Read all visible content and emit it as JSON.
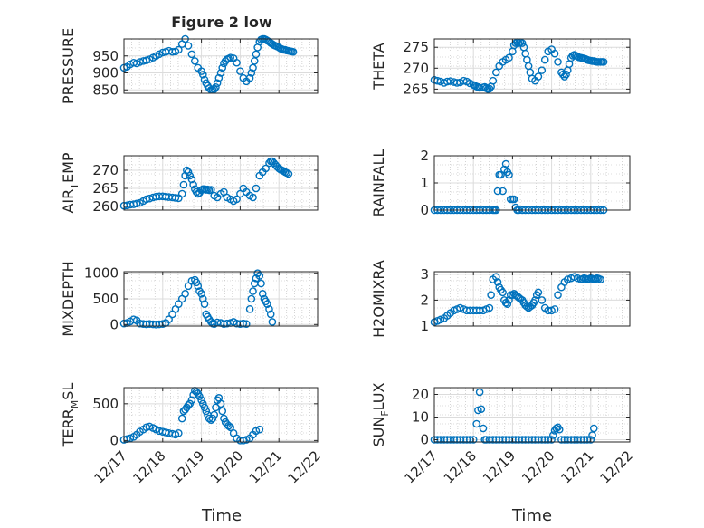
{
  "figure": {
    "title": "Figure 2 low",
    "x_label": "Time"
  },
  "colors": {
    "marker": "#0072BD",
    "axis": "#262626",
    "grid": "#b9b9b9"
  },
  "chart_data": [
    {
      "type": "scatter",
      "id": "pressure",
      "ylabel": "PRESSURE",
      "ylim": [
        840,
        1000
      ],
      "yticks": [
        850,
        900,
        950
      ],
      "xlim": [
        "12/17",
        "12/22"
      ],
      "grid": true,
      "x": [
        0.0,
        0.08,
        0.16,
        0.25,
        0.33,
        0.41,
        0.5,
        0.58,
        0.66,
        0.75,
        0.83,
        0.91,
        1.0,
        1.08,
        1.16,
        1.25,
        1.33,
        1.41,
        1.5,
        1.58,
        1.66,
        1.75,
        1.83,
        1.91,
        2.0,
        2.04,
        2.08,
        2.12,
        2.16,
        2.2,
        2.25,
        2.29,
        2.33,
        2.37,
        2.41,
        2.45,
        2.5,
        2.54,
        2.58,
        2.62,
        2.66,
        2.7,
        2.75,
        2.83,
        2.91,
        3.0,
        3.08,
        3.16,
        3.25,
        3.29,
        3.33,
        3.37,
        3.41,
        3.45,
        3.5,
        3.54,
        3.58,
        3.62,
        3.66,
        3.7,
        3.75,
        3.79,
        3.83,
        3.87,
        3.91,
        3.95,
        4.0,
        4.04,
        4.08,
        4.12,
        4.16,
        4.2,
        4.25,
        4.29,
        4.33,
        4.37
      ],
      "y": [
        915,
        918,
        925,
        930,
        928,
        932,
        935,
        937,
        940,
        945,
        950,
        955,
        960,
        962,
        965,
        962,
        963,
        968,
        985,
        1000,
        980,
        955,
        935,
        915,
        905,
        895,
        880,
        870,
        862,
        855,
        850,
        850,
        852,
        858,
        870,
        885,
        900,
        915,
        928,
        935,
        940,
        942,
        945,
        943,
        930,
        905,
        885,
        875,
        885,
        900,
        915,
        935,
        955,
        975,
        992,
        998,
        1000,
        1000,
        998,
        995,
        992,
        988,
        985,
        982,
        980,
        978,
        975,
        972,
        970,
        968,
        968,
        966,
        965,
        964,
        963,
        962
      ]
    },
    {
      "type": "scatter",
      "id": "theta",
      "ylabel": "THETA",
      "ylim": [
        264,
        277
      ],
      "yticks": [
        265,
        270,
        275
      ],
      "xlim": [
        "12/17",
        "12/22"
      ],
      "grid": true,
      "x": [
        0.0,
        0.08,
        0.16,
        0.25,
        0.33,
        0.41,
        0.5,
        0.58,
        0.66,
        0.75,
        0.83,
        0.91,
        1.0,
        1.04,
        1.08,
        1.12,
        1.16,
        1.25,
        1.29,
        1.33,
        1.37,
        1.41,
        1.45,
        1.5,
        1.58,
        1.66,
        1.75,
        1.83,
        1.91,
        2.0,
        2.04,
        2.08,
        2.12,
        2.16,
        2.2,
        2.25,
        2.29,
        2.33,
        2.37,
        2.41,
        2.45,
        2.5,
        2.58,
        2.66,
        2.75,
        2.83,
        2.91,
        3.0,
        3.08,
        3.16,
        3.25,
        3.29,
        3.33,
        3.37,
        3.41,
        3.45,
        3.5,
        3.54,
        3.58,
        3.62,
        3.66,
        3.7,
        3.75,
        3.79,
        3.83,
        3.87,
        3.91,
        3.95,
        4.0,
        4.04,
        4.08,
        4.12,
        4.16,
        4.2,
        4.25,
        4.29,
        4.33
      ],
      "y": [
        267.2,
        267.0,
        266.8,
        266.5,
        266.8,
        266.9,
        266.7,
        266.5,
        266.6,
        267.0,
        266.8,
        266.4,
        266.0,
        265.8,
        265.6,
        265.5,
        265.3,
        265.4,
        265.5,
        265.2,
        265.0,
        265.1,
        265.6,
        267.0,
        269.0,
        270.5,
        271.5,
        272.0,
        272.5,
        274.0,
        275.5,
        276.0,
        276.2,
        276.0,
        276.2,
        276.0,
        275.0,
        273.5,
        272.0,
        270.5,
        269.0,
        267.5,
        267.0,
        268.0,
        269.5,
        272.0,
        274.0,
        274.5,
        273.5,
        271.5,
        269.0,
        268.5,
        268.0,
        268.5,
        269.5,
        271.0,
        272.5,
        273.0,
        273.2,
        273.0,
        272.8,
        272.6,
        272.5,
        272.4,
        272.3,
        272.2,
        272.0,
        271.9,
        271.8,
        271.7,
        271.7,
        271.6,
        271.5,
        271.5,
        271.5,
        271.5,
        271.5
      ]
    },
    {
      "type": "scatter",
      "id": "air_temp",
      "ylabel": "AIR_TEMP",
      "ylabel_display": [
        "AIR",
        "T",
        "EMP"
      ],
      "ylim": [
        259,
        274
      ],
      "yticks": [
        260,
        265,
        270
      ],
      "xlim": [
        "12/17",
        "12/22"
      ],
      "grid": true,
      "x": [
        0.0,
        0.08,
        0.16,
        0.25,
        0.33,
        0.41,
        0.5,
        0.58,
        0.66,
        0.75,
        0.83,
        0.91,
        1.0,
        1.08,
        1.16,
        1.25,
        1.33,
        1.41,
        1.5,
        1.54,
        1.58,
        1.62,
        1.66,
        1.7,
        1.75,
        1.79,
        1.83,
        1.87,
        1.91,
        1.95,
        2.0,
        2.04,
        2.08,
        2.12,
        2.16,
        2.2,
        2.25,
        2.33,
        2.41,
        2.5,
        2.58,
        2.66,
        2.75,
        2.83,
        2.91,
        3.0,
        3.08,
        3.16,
        3.25,
        3.33,
        3.41,
        3.5,
        3.58,
        3.66,
        3.75,
        3.79,
        3.83,
        3.87,
        3.91,
        3.95,
        4.0,
        4.04,
        4.08,
        4.12,
        4.16,
        4.2,
        4.25
      ],
      "y": [
        260.2,
        260.3,
        260.5,
        260.6,
        260.8,
        261.0,
        261.5,
        262.0,
        262.2,
        262.5,
        262.7,
        262.8,
        262.8,
        262.7,
        262.6,
        262.5,
        262.4,
        262.3,
        263.5,
        266.0,
        268.5,
        270.0,
        269.5,
        268.5,
        267.5,
        266.0,
        264.8,
        264.0,
        263.5,
        263.8,
        264.5,
        264.8,
        264.8,
        264.6,
        264.7,
        264.5,
        264.6,
        263.0,
        262.5,
        263.5,
        264.0,
        262.5,
        262.0,
        261.5,
        262.0,
        263.5,
        265.0,
        264.0,
        263.0,
        262.5,
        265.0,
        268.5,
        269.5,
        270.5,
        272.0,
        272.5,
        272.5,
        272.0,
        271.5,
        271.0,
        270.5,
        270.2,
        270.0,
        269.8,
        269.5,
        269.3,
        269.0
      ]
    },
    {
      "type": "scatter",
      "id": "rainfall",
      "ylabel": "RAINFALL",
      "ylim": [
        0,
        2
      ],
      "yticks": [
        0,
        1,
        2
      ],
      "xlim": [
        "12/17",
        "12/22"
      ],
      "grid": true,
      "x": [
        0.0,
        0.08,
        0.16,
        0.25,
        0.33,
        0.41,
        0.5,
        0.58,
        0.66,
        0.75,
        0.83,
        0.91,
        1.0,
        1.08,
        1.16,
        1.25,
        1.33,
        1.41,
        1.5,
        1.54,
        1.58,
        1.62,
        1.66,
        1.7,
        1.75,
        1.79,
        1.83,
        1.87,
        1.91,
        1.95,
        2.0,
        2.04,
        2.08,
        2.12,
        2.16,
        2.25,
        2.33,
        2.41,
        2.5,
        2.58,
        2.66,
        2.75,
        2.83,
        2.91,
        3.0,
        3.08,
        3.16,
        3.25,
        3.33,
        3.41,
        3.5,
        3.58,
        3.66,
        3.75,
        3.83,
        3.91,
        4.0,
        4.08,
        4.16,
        4.25,
        4.33
      ],
      "y": [
        0,
        0,
        0,
        0,
        0,
        0,
        0,
        0,
        0,
        0,
        0,
        0,
        0,
        0,
        0,
        0,
        0,
        0,
        0,
        0,
        0,
        0.7,
        1.3,
        1.3,
        0.7,
        1.5,
        1.7,
        1.4,
        1.3,
        0.4,
        0.4,
        0.4,
        0.1,
        0,
        0,
        0,
        0,
        0,
        0,
        0,
        0,
        0,
        0,
        0,
        0,
        0,
        0,
        0,
        0,
        0,
        0,
        0,
        0,
        0,
        0,
        0,
        0,
        0,
        0,
        0,
        0
      ]
    },
    {
      "type": "scatter",
      "id": "mixdepth",
      "ylabel": "MIXDEPTH",
      "ylim": [
        -30,
        1030
      ],
      "yticks": [
        0,
        500,
        1000
      ],
      "xlim": [
        "12/17",
        "12/22"
      ],
      "grid": true,
      "x": [
        0.0,
        0.08,
        0.16,
        0.25,
        0.33,
        0.41,
        0.5,
        0.58,
        0.66,
        0.75,
        0.83,
        0.91,
        1.0,
        1.08,
        1.16,
        1.25,
        1.33,
        1.41,
        1.5,
        1.58,
        1.66,
        1.75,
        1.83,
        1.87,
        1.91,
        1.95,
        2.0,
        2.04,
        2.08,
        2.12,
        2.16,
        2.2,
        2.25,
        2.29,
        2.33,
        2.41,
        2.5,
        2.58,
        2.66,
        2.75,
        2.83,
        2.91,
        3.0,
        3.08,
        3.16,
        3.25,
        3.29,
        3.33,
        3.37,
        3.41,
        3.45,
        3.5,
        3.54,
        3.58,
        3.62,
        3.66,
        3.7,
        3.75,
        3.79,
        3.83
      ],
      "y": [
        20,
        30,
        60,
        100,
        80,
        20,
        10,
        5,
        10,
        5,
        0,
        5,
        10,
        30,
        100,
        200,
        300,
        400,
        500,
        600,
        750,
        850,
        870,
        820,
        750,
        650,
        600,
        500,
        400,
        200,
        150,
        100,
        50,
        20,
        10,
        40,
        30,
        10,
        20,
        30,
        50,
        20,
        10,
        20,
        10,
        300,
        500,
        650,
        800,
        900,
        1000,
        950,
        800,
        600,
        500,
        450,
        400,
        300,
        200,
        50
      ]
    },
    {
      "type": "scatter",
      "id": "h2omixra",
      "ylabel": "H2OMIXRA",
      "ylim": [
        1,
        3.1
      ],
      "yticks": [
        1,
        2,
        3
      ],
      "xlim": [
        "12/17",
        "12/22"
      ],
      "grid": true,
      "x": [
        0.0,
        0.08,
        0.16,
        0.25,
        0.33,
        0.41,
        0.5,
        0.58,
        0.66,
        0.75,
        0.83,
        0.91,
        1.0,
        1.08,
        1.16,
        1.25,
        1.33,
        1.41,
        1.45,
        1.5,
        1.58,
        1.62,
        1.66,
        1.7,
        1.75,
        1.79,
        1.83,
        1.87,
        1.91,
        1.95,
        2.0,
        2.04,
        2.08,
        2.12,
        2.16,
        2.2,
        2.25,
        2.29,
        2.33,
        2.37,
        2.41,
        2.45,
        2.5,
        2.54,
        2.58,
        2.62,
        2.66,
        2.75,
        2.83,
        2.91,
        3.0,
        3.08,
        3.16,
        3.25,
        3.33,
        3.41,
        3.5,
        3.58,
        3.66,
        3.75,
        3.79,
        3.83,
        3.87,
        3.91,
        3.95,
        4.0,
        4.04,
        4.08,
        4.12,
        4.16,
        4.2,
        4.25
      ],
      "y": [
        1.15,
        1.2,
        1.25,
        1.3,
        1.4,
        1.5,
        1.6,
        1.65,
        1.7,
        1.65,
        1.6,
        1.6,
        1.6,
        1.6,
        1.6,
        1.6,
        1.65,
        1.7,
        2.2,
        2.8,
        2.9,
        2.7,
        2.5,
        2.4,
        2.3,
        2.0,
        1.9,
        1.85,
        2.0,
        2.2,
        2.2,
        2.25,
        2.2,
        2.15,
        2.1,
        2.05,
        2.0,
        1.9,
        1.8,
        1.75,
        1.7,
        1.75,
        1.8,
        1.9,
        2.0,
        2.2,
        2.3,
        2.0,
        1.7,
        1.6,
        1.6,
        1.65,
        2.2,
        2.5,
        2.7,
        2.8,
        2.85,
        2.9,
        2.85,
        2.8,
        2.82,
        2.85,
        2.83,
        2.8,
        2.82,
        2.85,
        2.83,
        2.8,
        2.82,
        2.85,
        2.83,
        2.8
      ]
    },
    {
      "type": "scatter",
      "id": "terr_msl",
      "ylabel": "TERR_MSL",
      "ylabel_display": [
        "TERR",
        "M",
        "SL"
      ],
      "ylim": [
        -20,
        720
      ],
      "yticks": [
        0,
        500
      ],
      "xlim": [
        "12/17",
        "12/22"
      ],
      "grid": true,
      "x": [
        0.0,
        0.08,
        0.16,
        0.25,
        0.33,
        0.41,
        0.5,
        0.58,
        0.66,
        0.75,
        0.83,
        0.91,
        1.0,
        1.08,
        1.16,
        1.25,
        1.33,
        1.41,
        1.5,
        1.54,
        1.58,
        1.62,
        1.66,
        1.7,
        1.75,
        1.79,
        1.83,
        1.87,
        1.91,
        1.95,
        2.0,
        2.04,
        2.08,
        2.12,
        2.16,
        2.2,
        2.25,
        2.29,
        2.33,
        2.37,
        2.41,
        2.45,
        2.5,
        2.54,
        2.58,
        2.62,
        2.66,
        2.7,
        2.75,
        2.83,
        2.91,
        3.0,
        3.08,
        3.16,
        3.25,
        3.33,
        3.41,
        3.5
      ],
      "y": [
        10,
        20,
        30,
        50,
        80,
        120,
        150,
        180,
        190,
        170,
        150,
        130,
        120,
        110,
        100,
        90,
        80,
        100,
        300,
        400,
        420,
        450,
        480,
        500,
        550,
        620,
        680,
        660,
        640,
        600,
        550,
        500,
        450,
        400,
        350,
        300,
        280,
        300,
        350,
        450,
        550,
        580,
        500,
        400,
        300,
        250,
        220,
        200,
        180,
        100,
        30,
        0,
        0,
        10,
        30,
        80,
        130,
        150
      ]
    },
    {
      "type": "scatter",
      "id": "sun_flux",
      "ylabel": "SUN_FLUX",
      "ylabel_display": [
        "SUN",
        "F",
        "LUX"
      ],
      "ylim": [
        -1,
        23
      ],
      "yticks": [
        0,
        10,
        20
      ],
      "xlim": [
        "12/17",
        "12/22"
      ],
      "grid": true,
      "x": [
        0.0,
        0.08,
        0.16,
        0.25,
        0.33,
        0.41,
        0.5,
        0.58,
        0.66,
        0.75,
        0.83,
        0.91,
        1.0,
        1.08,
        1.12,
        1.16,
        1.2,
        1.25,
        1.29,
        1.33,
        1.41,
        1.5,
        1.58,
        1.66,
        1.75,
        1.83,
        1.91,
        2.0,
        2.08,
        2.16,
        2.25,
        2.33,
        2.41,
        2.5,
        2.58,
        2.66,
        2.75,
        2.83,
        2.91,
        3.0,
        3.04,
        3.08,
        3.12,
        3.16,
        3.2,
        3.25,
        3.33,
        3.41,
        3.5,
        3.58,
        3.66,
        3.75,
        3.83,
        3.91,
        4.0,
        4.04,
        4.08
      ],
      "y": [
        0,
        0,
        0,
        0,
        0,
        0,
        0,
        0,
        0,
        0,
        0,
        0,
        0,
        7,
        13,
        21,
        13.5,
        5,
        0,
        0,
        0,
        0,
        0,
        0,
        0,
        0,
        0,
        0,
        0,
        0,
        0,
        0,
        0,
        0,
        0,
        0,
        0,
        0,
        0,
        0,
        2,
        4,
        5,
        5.5,
        4.5,
        0,
        0,
        0,
        0,
        0,
        0,
        0,
        0,
        0,
        0,
        2,
        5
      ]
    }
  ]
}
